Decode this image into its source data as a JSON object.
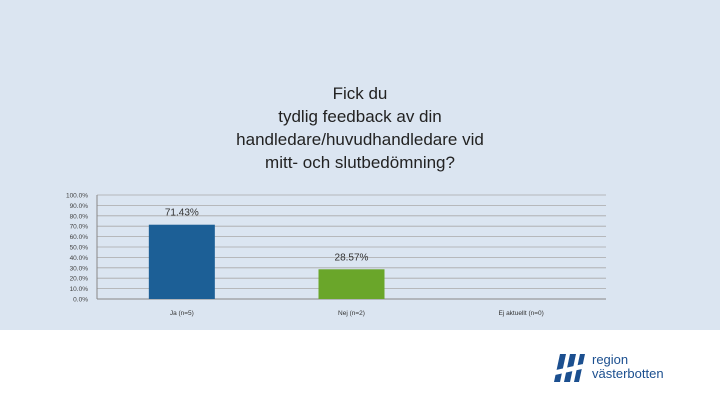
{
  "chart_data": {
    "type": "bar",
    "title_lines": [
      "Fick du",
      "tydlig feedback av din",
      "handledare/huvudhandledare vid",
      "mitt- och slutbedömning?"
    ],
    "categories": [
      "Ja (n=5)",
      "Nej (n=2)",
      "Ej aktuellt (n=0)"
    ],
    "values": [
      71.43,
      28.57,
      0
    ],
    "value_labels": [
      "71.43%",
      "28.57%",
      ""
    ],
    "colors": [
      "#1c5f96",
      "#6aa62a",
      "#888888"
    ],
    "ylim": [
      0,
      100
    ],
    "y_ticks": [
      0,
      10,
      20,
      30,
      40,
      50,
      60,
      70,
      80,
      90,
      100
    ],
    "y_tick_labels": [
      "0.0%",
      "10.0%",
      "20.0%",
      "30.0%",
      "40.0%",
      "50.0%",
      "60.0%",
      "70.0%",
      "80.0%",
      "90.0%",
      "100.0%"
    ],
    "grid": true,
    "legend": "none"
  },
  "logo": {
    "line1": "region",
    "line2": "västerbotten",
    "color": "#1b4f8f"
  }
}
